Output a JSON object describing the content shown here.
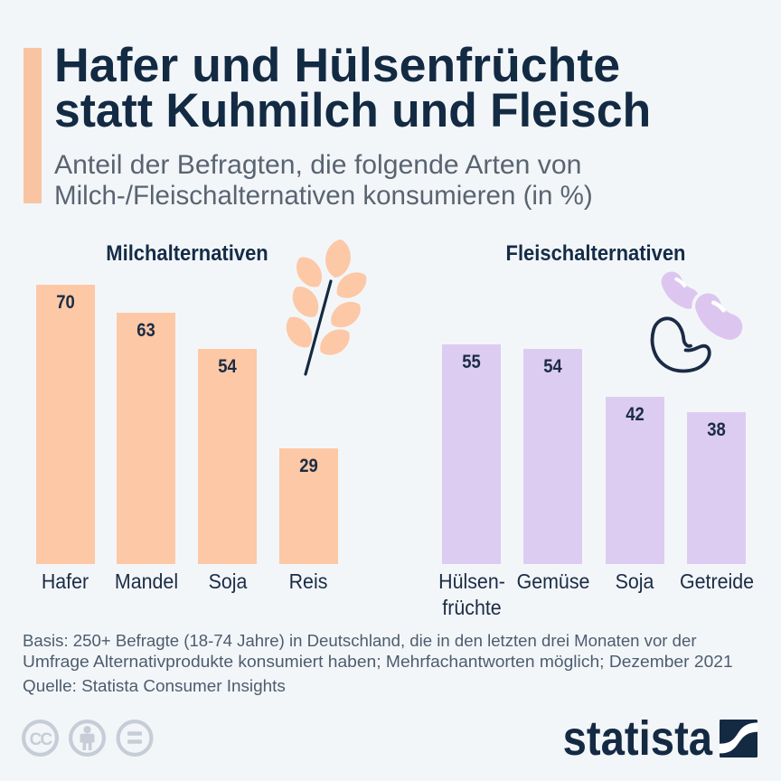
{
  "page": {
    "background": "#f3f6f9"
  },
  "header": {
    "title_line1": "Hafer und Hülsenfrüchte",
    "title_line2": "statt Kuhmilch und Fleisch",
    "subtitle_line1": "Anteil der Befragten, die folgende Arten von",
    "subtitle_line2": "Milch-/Fleischalternativen konsumieren (in %)"
  },
  "chart_data": {
    "type": "bar",
    "value_unit": "%",
    "value_labels_shown": true,
    "ylim": [
      0,
      70
    ],
    "grid": false,
    "legend": "none",
    "groups": [
      {
        "title": "Milchalternativen",
        "icon": "oat-sprig-icon",
        "bar_color": "#fcc8a6",
        "categories": [
          "Hafer",
          "Mandel",
          "Soja",
          "Reis"
        ],
        "values": [
          70,
          63,
          54,
          29
        ]
      },
      {
        "title": "Fleischalternativen",
        "icon": "beans-icon",
        "bar_color": "#ddccf1",
        "categories": [
          "Hülsen-\nfrüchte",
          "Gemüse",
          "Soja",
          "Getreide"
        ],
        "values": [
          55,
          54,
          42,
          38
        ]
      }
    ]
  },
  "footer": {
    "basis_line1": "Basis: 250+ Befragte (18-74 Jahre) in Deutschland, die in den letzten drei Monaten vor der",
    "basis_line2": "Umfrage Alternativprodukte konsumiert haben; Mehrfachantworten möglich; Dezember 2021",
    "source": "Quelle: Statista Consumer Insights"
  },
  "branding": {
    "logo_text": "statista",
    "cc_label": "CC"
  },
  "colors": {
    "background": "#f3f6f9",
    "accent_bar": "#f9c4a2",
    "title": "#132a43",
    "subtitle": "#5a6471",
    "labels": "#1b2c45",
    "footer_text": "#4d5c6d",
    "milk_bar": "#fcc8a6",
    "meat_bar": "#ddccf1",
    "license_icons": "#c6cdd7",
    "logo": "#142a43"
  }
}
